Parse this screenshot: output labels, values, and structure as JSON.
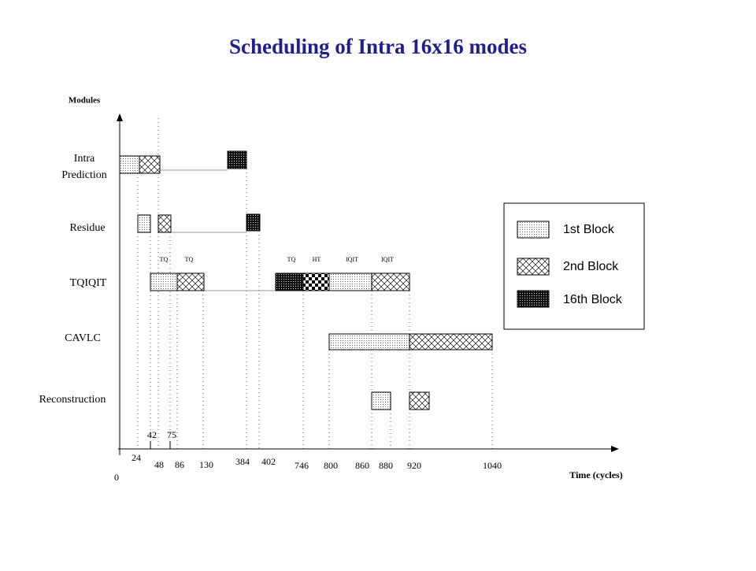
{
  "header": {
    "title": "Scheduling of Intra 16x16 modes"
  },
  "axes": {
    "y_title": "Modules",
    "x_title": "Time (cycles)"
  },
  "modules": [
    [
      "Intra",
      "Prediction"
    ],
    "Residue",
    "TQIQIT",
    "CAVLC",
    "Reconstruction"
  ],
  "task_labels": [
    "TQ",
    "TQ",
    "TQ",
    "HT",
    "IQIT",
    "IQIT"
  ],
  "time_ticks": [
    "0",
    "24",
    "42",
    "75",
    "48",
    "86",
    "130",
    "384",
    "402",
    "746",
    "800",
    "860",
    "880",
    "920",
    "1040"
  ],
  "legend": [
    "1st Block",
    "2nd Block",
    "16th Block"
  ]
}
